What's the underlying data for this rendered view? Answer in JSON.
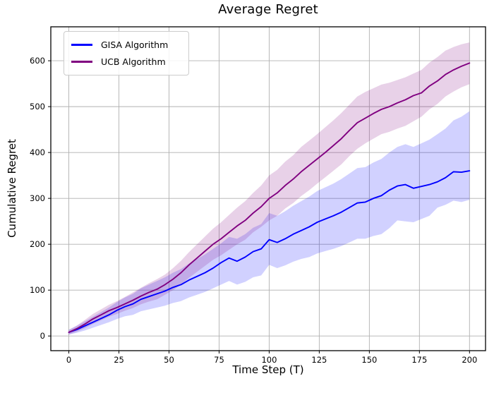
{
  "title": "Average Regret",
  "colors": {
    "gisa_line": "#0000ff",
    "gisa_band": "rgba(0,0,255,0.18)",
    "ucb_line": "#800080",
    "ucb_band": "rgba(128,0,128,0.18)",
    "grid": "#b0b0b0",
    "spine": "#000000",
    "background": "#ffffff",
    "legend_border": "#cccccc"
  },
  "chart_data": {
    "type": "line",
    "title": "Average Regret",
    "xlabel": "Time Step (T)",
    "ylabel": "Cumulative Regret",
    "xlim": [
      -9,
      208
    ],
    "ylim": [
      -32,
      674
    ],
    "xticks": [
      0,
      25,
      50,
      75,
      100,
      125,
      150,
      175,
      200
    ],
    "yticks": [
      0,
      100,
      200,
      300,
      400,
      500,
      600
    ],
    "grid": true,
    "legend_position": "upper-left",
    "x": [
      0,
      4,
      8,
      12,
      16,
      20,
      24,
      28,
      32,
      36,
      40,
      44,
      48,
      52,
      56,
      60,
      64,
      68,
      72,
      76,
      80,
      84,
      88,
      92,
      96,
      100,
      104,
      108,
      112,
      116,
      120,
      124,
      128,
      132,
      136,
      140,
      144,
      148,
      152,
      156,
      160,
      164,
      168,
      172,
      176,
      180,
      184,
      188,
      192,
      196,
      200
    ],
    "series": [
      {
        "name": "GISA Algorithm",
        "color": "#0000ff",
        "band_color": "rgba(0,0,255,0.18)",
        "mean": [
          8,
          14,
          22,
          30,
          38,
          46,
          56,
          64,
          70,
          80,
          86,
          92,
          98,
          106,
          112,
          122,
          130,
          138,
          148,
          160,
          170,
          163,
          172,
          184,
          190,
          210,
          204,
          212,
          222,
          230,
          238,
          248,
          255,
          262,
          270,
          280,
          290,
          292,
          300,
          306,
          318,
          327,
          330,
          322,
          326,
          330,
          336,
          345,
          358,
          357,
          360
        ],
        "lower": [
          3,
          7,
          12,
          18,
          24,
          30,
          37,
          43,
          46,
          54,
          58,
          62,
          66,
          72,
          76,
          84,
          90,
          96,
          104,
          112,
          120,
          112,
          118,
          128,
          132,
          155,
          148,
          154,
          162,
          168,
          172,
          180,
          185,
          190,
          196,
          204,
          212,
          212,
          218,
          222,
          235,
          252,
          250,
          248,
          255,
          262,
          280,
          286,
          295,
          292,
          297
        ],
        "upper": [
          14,
          22,
          32,
          42,
          52,
          62,
          74,
          84,
          92,
          104,
          112,
          120,
          128,
          138,
          146,
          158,
          168,
          178,
          190,
          202,
          216,
          212,
          222,
          236,
          244,
          268,
          262,
          272,
          284,
          294,
          304,
          316,
          324,
          332,
          342,
          354,
          366,
          368,
          378,
          386,
          400,
          412,
          418,
          412,
          420,
          428,
          440,
          452,
          470,
          478,
          490
        ]
      },
      {
        "name": "UCB Algorithm",
        "color": "#800080",
        "band_color": "rgba(128,0,128,0.18)",
        "mean": [
          8,
          16,
          26,
          37,
          46,
          55,
          62,
          70,
          78,
          87,
          95,
          102,
          112,
          124,
          138,
          155,
          170,
          185,
          200,
          212,
          226,
          240,
          252,
          268,
          282,
          300,
          312,
          328,
          342,
          358,
          372,
          386,
          400,
          415,
          430,
          448,
          465,
          475,
          485,
          494,
          500,
          508,
          515,
          524,
          530,
          545,
          556,
          570,
          580,
          588,
          595
        ],
        "lower": [
          3,
          9,
          17,
          26,
          34,
          42,
          48,
          55,
          61,
          69,
          75,
          80,
          90,
          100,
          112,
          127,
          140,
          153,
          166,
          176,
          188,
          200,
          210,
          226,
          238,
          252,
          262,
          278,
          290,
          305,
          318,
          332,
          346,
          360,
          374,
          392,
          408,
          420,
          430,
          440,
          445,
          452,
          458,
          468,
          478,
          494,
          506,
          522,
          533,
          542,
          549
        ],
        "upper": [
          13,
          23,
          35,
          48,
          58,
          68,
          76,
          85,
          95,
          105,
          115,
          124,
          134,
          148,
          164,
          183,
          200,
          217,
          234,
          248,
          264,
          280,
          294,
          312,
          328,
          350,
          362,
          380,
          394,
          412,
          426,
          440,
          455,
          470,
          486,
          504,
          522,
          532,
          540,
          548,
          552,
          558,
          564,
          572,
          580,
          596,
          608,
          622,
          630,
          636,
          640
        ]
      }
    ]
  }
}
